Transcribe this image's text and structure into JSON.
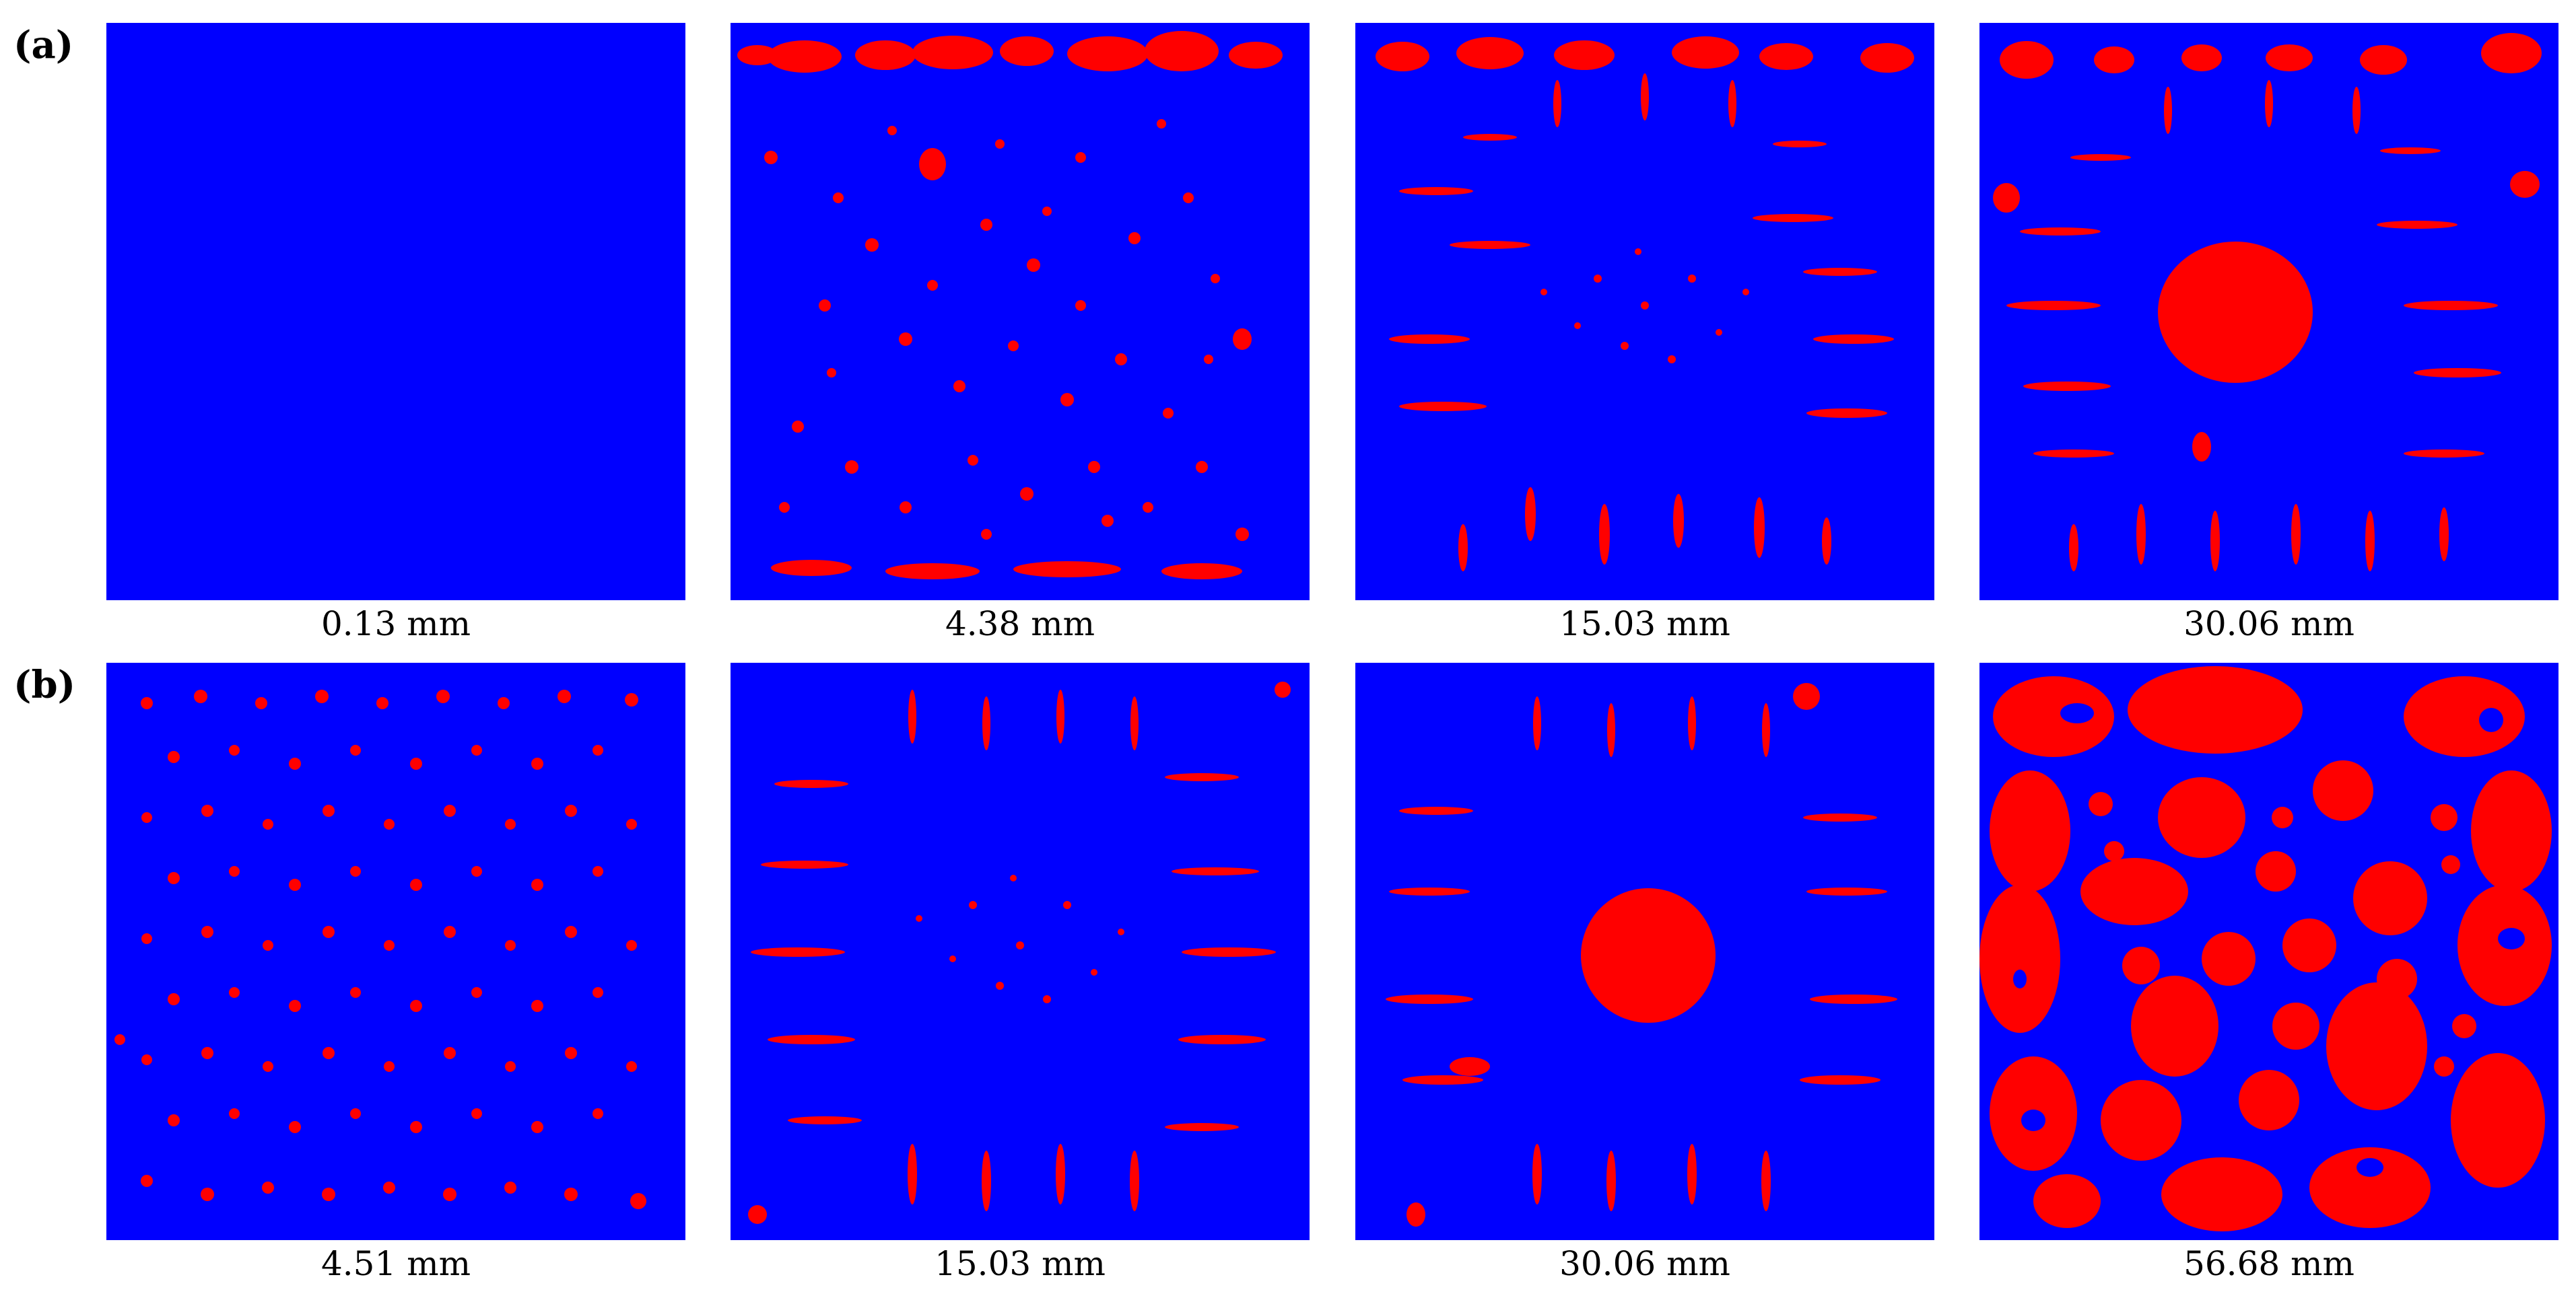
{
  "colors": {
    "background": "#0000ff",
    "feature": "#ff0000"
  },
  "rows": [
    {
      "label": "(a)",
      "panels": [
        {
          "caption": "0.13 mm"
        },
        {
          "caption": "4.38 mm"
        },
        {
          "caption": "15.03 mm"
        },
        {
          "caption": "30.06 mm"
        }
      ]
    },
    {
      "label": "(b)",
      "panels": [
        {
          "caption": "4.51 mm"
        },
        {
          "caption": "15.03 mm"
        },
        {
          "caption": "30.06 mm"
        },
        {
          "caption": "56.68 mm"
        }
      ]
    }
  ]
}
